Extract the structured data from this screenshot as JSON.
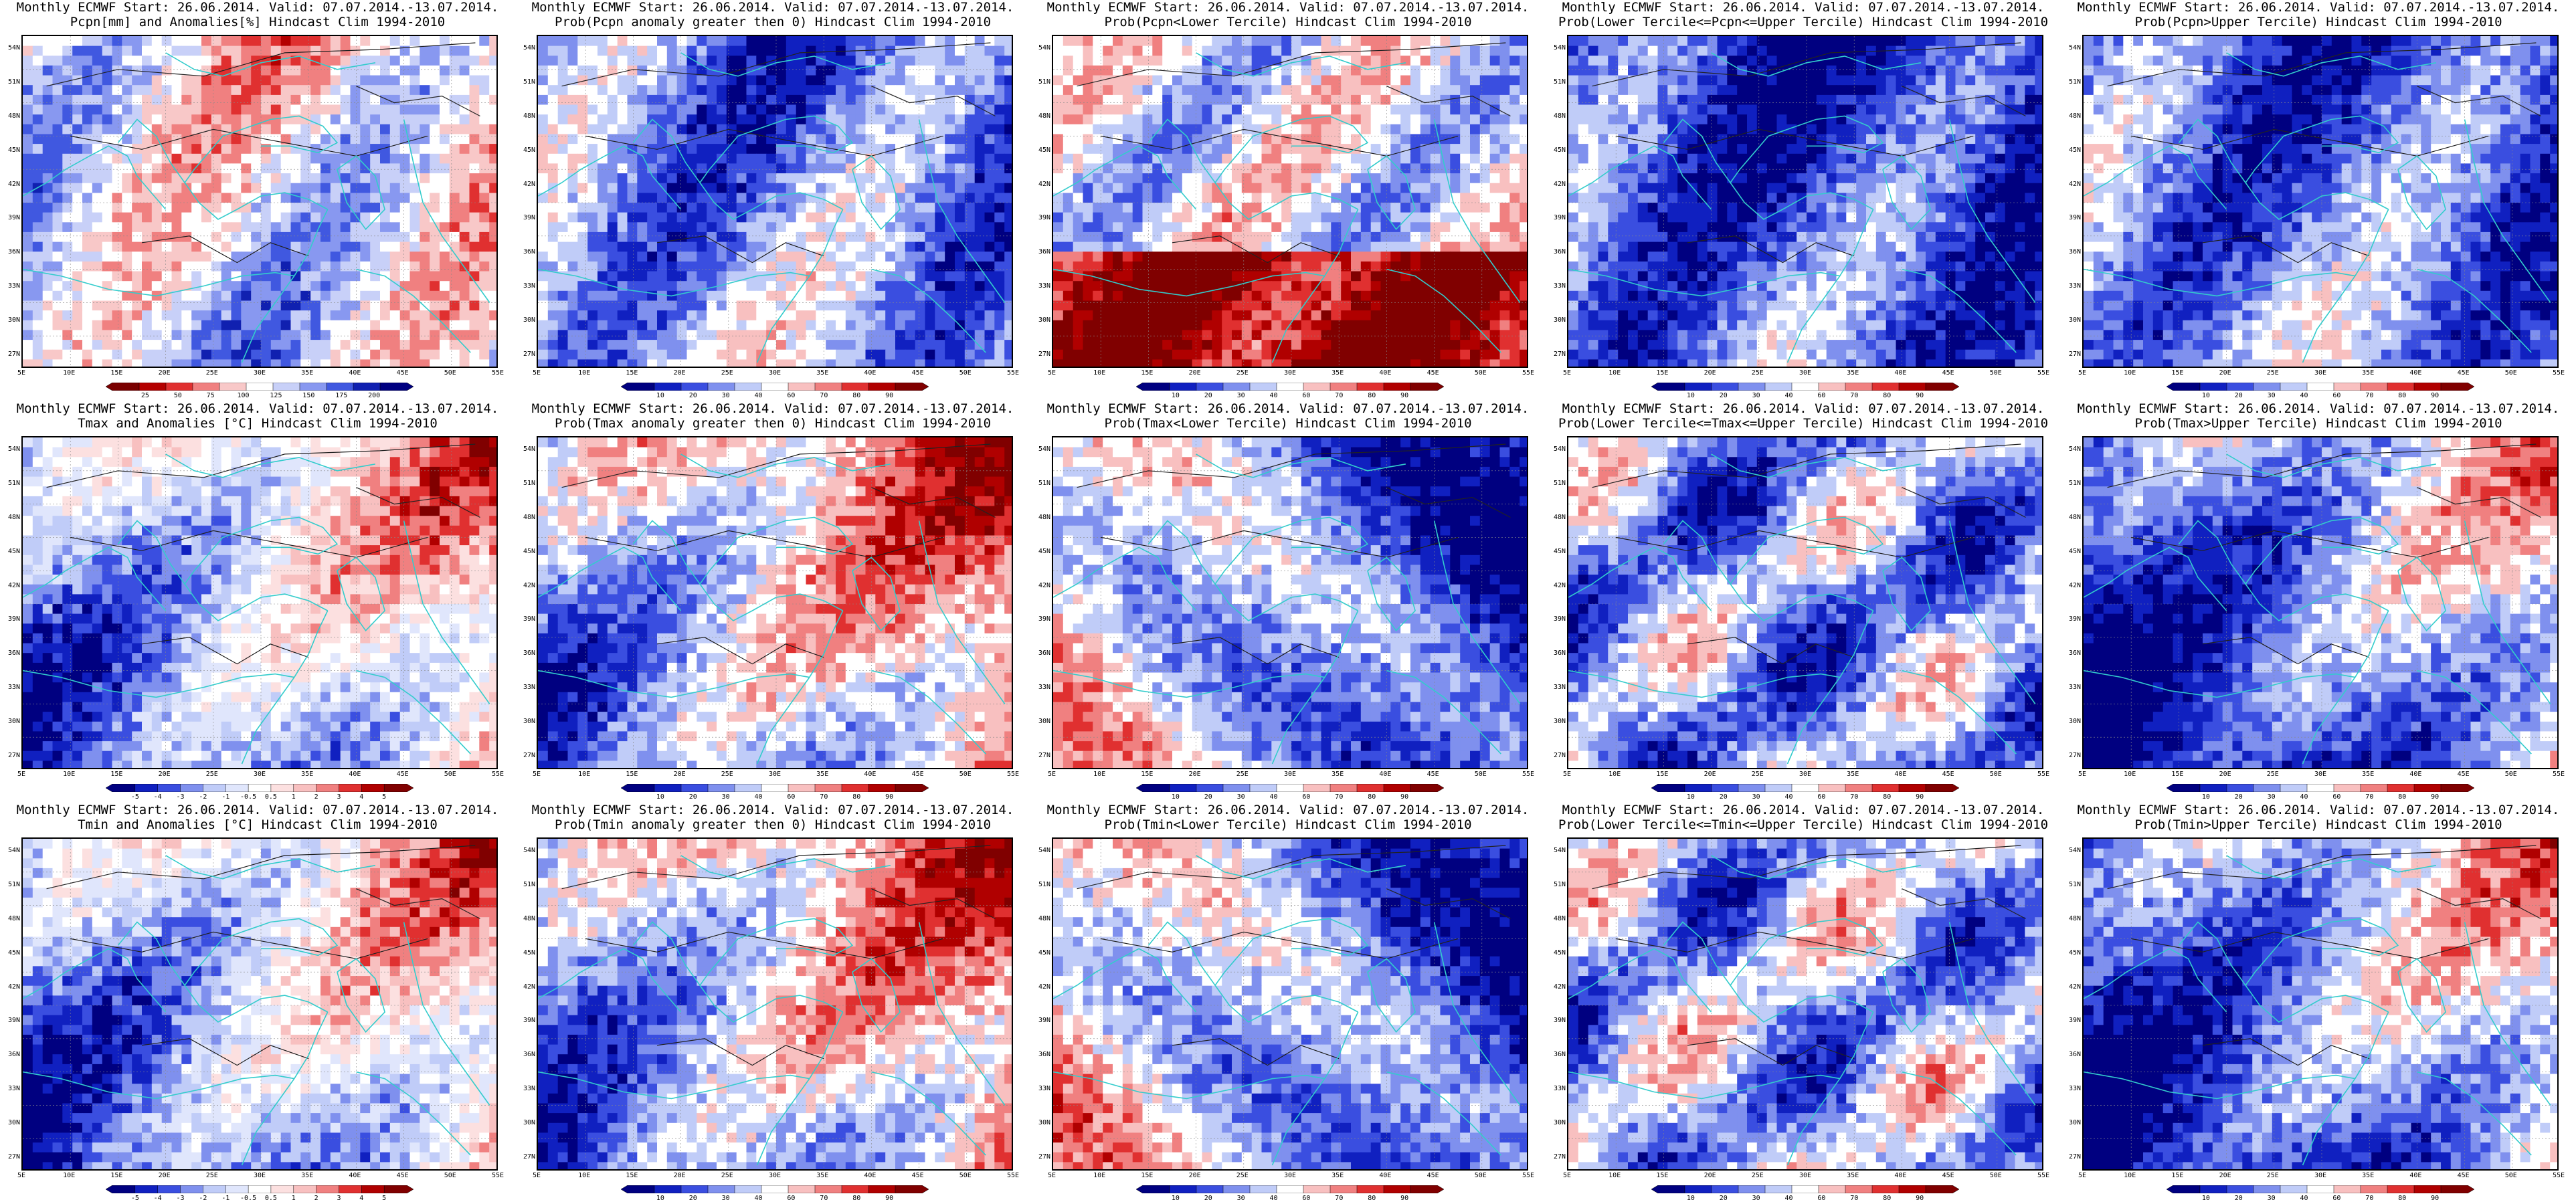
{
  "common": {
    "title_line1": "Monthly ECMWF Start: 26.06.2014. Valid: 07.07.2014.-13.07.2014.",
    "lat_labels": [
      "54N",
      "51N",
      "48N",
      "45N",
      "42N",
      "39N",
      "36N",
      "33N",
      "30N",
      "27N"
    ],
    "lon_labels": [
      "5E",
      "10E",
      "15E",
      "20E",
      "25E",
      "30E",
      "35E",
      "40E",
      "45E",
      "50E",
      "55E"
    ],
    "prob_ticks": [
      "10",
      "20",
      "30",
      "40",
      "60",
      "70",
      "80",
      "90"
    ]
  },
  "colors": {
    "coastline": "#33cccc",
    "contour": "#222222",
    "blue_dark": "#0a0aa0",
    "blue_mid": "#3a4ee0",
    "blue_light": "#a8b8f4",
    "white": "#ffffff",
    "red_light": "#f4b0b0",
    "red_mid": "#e03030",
    "red_dark": "#9a0000"
  },
  "panels": [
    {
      "id": "pcpn-anom",
      "title_line2": "Pcpn[mm] and Anomalies[%] Hindcast Clim 1994-2010",
      "cbar_ticks": [
        "25",
        "50",
        "75",
        "100",
        "125",
        "150",
        "175",
        "200"
      ],
      "cbar_colors": [
        "#7a0000",
        "#b40000",
        "#e03030",
        "#f08080",
        "#f8c8c8",
        "#ffffff",
        "#c8d0f8",
        "#8898f0",
        "#4058e0",
        "#1020b0",
        "#000080"
      ],
      "pattern": "pcpn",
      "bias": 0.05
    },
    {
      "id": "pcpn-prob-gt0",
      "title_line2": "Prob(Pcpn anomaly greater then 0) Hindcast Clim 1994-2010",
      "cbar_ticks": [
        "10",
        "20",
        "30",
        "40",
        "60",
        "70",
        "80",
        "90"
      ],
      "cbar_colors": [
        "#000080",
        "#1020c0",
        "#3a4ee0",
        "#7f90ee",
        "#c0ccf8",
        "#ffffff",
        "#f8c0c0",
        "#f08080",
        "#e03030",
        "#b00000",
        "#800000"
      ],
      "pattern": "pcpn",
      "bias": -0.45
    },
    {
      "id": "pcpn-prob-lower",
      "title_line2": "Prob(Pcpn<Lower Tercile) Hindcast Clim 1994-2010",
      "cbar_ticks": [
        "10",
        "20",
        "30",
        "40",
        "60",
        "70",
        "80",
        "90"
      ],
      "cbar_colors": [
        "#000080",
        "#1020c0",
        "#3a4ee0",
        "#7f90ee",
        "#c0ccf8",
        "#ffffff",
        "#f8c0c0",
        "#f08080",
        "#e03030",
        "#b00000",
        "#800000"
      ],
      "pattern": "pcpn-lower",
      "bias": 0.1
    },
    {
      "id": "pcpn-prob-middle",
      "title_line2": "Prob(Lower Tercile<=Pcpn<=Upper Tercile) Hindcast Clim 1994-2010",
      "cbar_ticks": [
        "10",
        "20",
        "30",
        "40",
        "60",
        "70",
        "80",
        "90"
      ],
      "cbar_colors": [
        "#000080",
        "#1020c0",
        "#3a4ee0",
        "#7f90ee",
        "#c0ccf8",
        "#ffffff",
        "#f8c0c0",
        "#f08080",
        "#e03030",
        "#b00000",
        "#800000"
      ],
      "pattern": "pcpn",
      "bias": -0.7
    },
    {
      "id": "pcpn-prob-upper",
      "title_line2": "Prob(Pcpn>Upper Tercile) Hindcast Clim 1994-2010",
      "cbar_ticks": [
        "10",
        "20",
        "30",
        "40",
        "60",
        "70",
        "80",
        "90"
      ],
      "cbar_colors": [
        "#000080",
        "#1020c0",
        "#3a4ee0",
        "#7f90ee",
        "#c0ccf8",
        "#ffffff",
        "#f8c0c0",
        "#f08080",
        "#e03030",
        "#b00000",
        "#800000"
      ],
      "pattern": "pcpn",
      "bias": -0.55
    },
    {
      "id": "tmax-anom",
      "title_line2": "Tmax and Anomalies [°C] Hindcast Clim 1994-2010",
      "cbar_ticks": [
        "-5",
        "-4",
        "-3",
        "-2",
        "-1",
        "-0.5",
        "0.5",
        "1",
        "2",
        "3",
        "4",
        "5"
      ],
      "cbar_colors": [
        "#000080",
        "#1020c0",
        "#3a4ee0",
        "#7f90ee",
        "#c0ccf8",
        "#e0e6fc",
        "#ffffff",
        "#fce0e0",
        "#f8c0c0",
        "#f08080",
        "#e03030",
        "#b00000",
        "#800000"
      ],
      "pattern": "temp-east",
      "bias": 0.0
    },
    {
      "id": "tmax-prob-gt0",
      "title_line2": "Prob(Tmax anomaly greater then 0) Hindcast Clim 1994-2010",
      "cbar_ticks": [
        "10",
        "20",
        "30",
        "40",
        "60",
        "70",
        "80",
        "90"
      ],
      "cbar_colors": [
        "#000080",
        "#1020c0",
        "#3a4ee0",
        "#7f90ee",
        "#c0ccf8",
        "#ffffff",
        "#f8c0c0",
        "#f08080",
        "#e03030",
        "#b00000",
        "#800000"
      ],
      "pattern": "temp-east",
      "bias": 0.15
    },
    {
      "id": "tmax-prob-lower",
      "title_line2": "Prob(Tmax<Lower Tercile) Hindcast Clim 1994-2010",
      "cbar_ticks": [
        "10",
        "20",
        "30",
        "40",
        "60",
        "70",
        "80",
        "90"
      ],
      "cbar_colors": [
        "#000080",
        "#1020c0",
        "#3a4ee0",
        "#7f90ee",
        "#c0ccf8",
        "#ffffff",
        "#f8c0c0",
        "#f08080",
        "#e03030",
        "#b00000",
        "#800000"
      ],
      "pattern": "temp-east-inv",
      "bias": -0.35
    },
    {
      "id": "tmax-prob-middle",
      "title_line2": "Prob(Lower Tercile<=Tmax<=Upper Tercile) Hindcast Clim 1994-2010",
      "cbar_ticks": [
        "10",
        "20",
        "30",
        "40",
        "60",
        "70",
        "80",
        "90"
      ],
      "cbar_colors": [
        "#000080",
        "#1020c0",
        "#3a4ee0",
        "#7f90ee",
        "#c0ccf8",
        "#ffffff",
        "#f8c0c0",
        "#f08080",
        "#e03030",
        "#b00000",
        "#800000"
      ],
      "pattern": "mixed",
      "bias": -0.4
    },
    {
      "id": "tmax-prob-upper",
      "title_line2": "Prob(Tmax>Upper Tercile) Hindcast Clim 1994-2010",
      "cbar_ticks": [
        "10",
        "20",
        "30",
        "40",
        "60",
        "70",
        "80",
        "90"
      ],
      "cbar_colors": [
        "#000080",
        "#1020c0",
        "#3a4ee0",
        "#7f90ee",
        "#c0ccf8",
        "#ffffff",
        "#f8c0c0",
        "#f08080",
        "#e03030",
        "#b00000",
        "#800000"
      ],
      "pattern": "temp-east",
      "bias": -0.3
    },
    {
      "id": "tmin-anom",
      "title_line2": "Tmin and Anomalies [°C] Hindcast Clim 1994-2010",
      "cbar_ticks": [
        "-5",
        "-4",
        "-3",
        "-2",
        "-1",
        "-0.5",
        "0.5",
        "1",
        "2",
        "3",
        "4",
        "5"
      ],
      "cbar_colors": [
        "#000080",
        "#1020c0",
        "#3a4ee0",
        "#7f90ee",
        "#c0ccf8",
        "#e0e6fc",
        "#ffffff",
        "#fce0e0",
        "#f8c0c0",
        "#f08080",
        "#e03030",
        "#b00000",
        "#800000"
      ],
      "pattern": "temp-east",
      "bias": -0.05
    },
    {
      "id": "tmin-prob-gt0",
      "title_line2": "Prob(Tmin anomaly greater then 0) Hindcast Clim 1994-2010",
      "cbar_ticks": [
        "10",
        "20",
        "30",
        "40",
        "60",
        "70",
        "80",
        "90"
      ],
      "cbar_colors": [
        "#000080",
        "#1020c0",
        "#3a4ee0",
        "#7f90ee",
        "#c0ccf8",
        "#ffffff",
        "#f8c0c0",
        "#f08080",
        "#e03030",
        "#b00000",
        "#800000"
      ],
      "pattern": "temp-east",
      "bias": 0.1
    },
    {
      "id": "tmin-prob-lower",
      "title_line2": "Prob(Tmin<Lower Tercile) Hindcast Clim 1994-2010",
      "cbar_ticks": [
        "10",
        "20",
        "30",
        "40",
        "60",
        "70",
        "80",
        "90"
      ],
      "cbar_colors": [
        "#000080",
        "#1020c0",
        "#3a4ee0",
        "#7f90ee",
        "#c0ccf8",
        "#ffffff",
        "#f8c0c0",
        "#f08080",
        "#e03030",
        "#b00000",
        "#800000"
      ],
      "pattern": "temp-east-inv",
      "bias": -0.3
    },
    {
      "id": "tmin-prob-middle",
      "title_line2": "Prob(Lower Tercile<=Tmin<=Upper Tercile) Hindcast Clim 1994-2010",
      "cbar_ticks": [
        "10",
        "20",
        "30",
        "40",
        "60",
        "70",
        "80",
        "90"
      ],
      "cbar_colors": [
        "#000080",
        "#1020c0",
        "#3a4ee0",
        "#7f90ee",
        "#c0ccf8",
        "#ffffff",
        "#f8c0c0",
        "#f08080",
        "#e03030",
        "#b00000",
        "#800000"
      ],
      "pattern": "mixed",
      "bias": -0.3
    },
    {
      "id": "tmin-prob-upper",
      "title_line2": "Prob(Tmin>Upper Tercile) Hindcast Clim 1994-2010",
      "cbar_ticks": [
        "10",
        "20",
        "30",
        "40",
        "60",
        "70",
        "80",
        "90"
      ],
      "cbar_colors": [
        "#000080",
        "#1020c0",
        "#3a4ee0",
        "#7f90ee",
        "#c0ccf8",
        "#ffffff",
        "#f8c0c0",
        "#f08080",
        "#e03030",
        "#b00000",
        "#800000"
      ],
      "pattern": "temp-east",
      "bias": -0.25
    }
  ]
}
